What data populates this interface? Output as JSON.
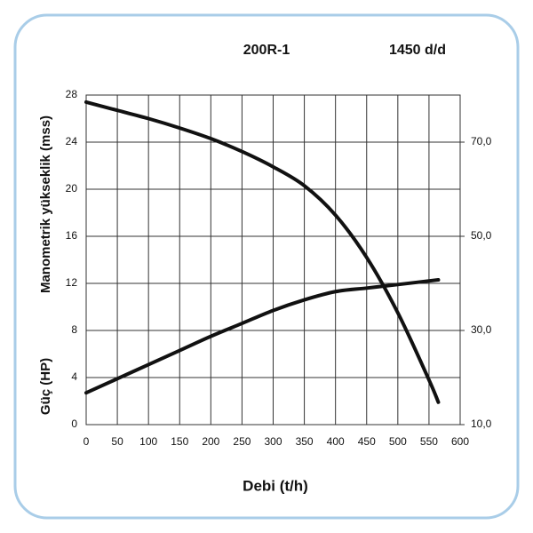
{
  "chart_data": {
    "type": "line",
    "title": "200R-1",
    "subtitle": "1450 d/d",
    "x_label": "Debi (t/h)",
    "y_label": "Manometrik yükseklik (mss)",
    "y_label_2": "Güç (HP)",
    "xlim": [
      0,
      600
    ],
    "xticks": [
      0,
      50,
      100,
      150,
      200,
      250,
      300,
      350,
      400,
      450,
      500,
      550,
      600
    ],
    "ylim": [
      0,
      28
    ],
    "yticks": [
      0,
      4,
      8,
      12,
      16,
      20,
      24,
      28
    ],
    "y2lim": [
      10,
      80
    ],
    "y2ticks": [
      {
        "value": 10,
        "label": "10,0"
      },
      {
        "value": 30,
        "label": "30,0"
      },
      {
        "value": 50,
        "label": "50,0"
      },
      {
        "value": 70,
        "label": "70,0"
      }
    ],
    "grid": true,
    "series": [
      {
        "color": "#111111",
        "x": [
          0,
          50,
          100,
          150,
          200,
          250,
          300,
          350,
          400,
          450,
          500,
          550,
          565
        ],
        "values": [
          27.4,
          26.7,
          26.0,
          25.2,
          24.3,
          23.2,
          21.9,
          20.3,
          17.8,
          14.2,
          9.5,
          3.8,
          1.9
        ]
      },
      {
        "color": "#111111",
        "x": [
          0,
          50,
          100,
          150,
          200,
          250,
          300,
          350,
          400,
          450,
          500,
          565
        ],
        "values": [
          2.7,
          3.9,
          5.1,
          6.3,
          7.5,
          8.6,
          9.7,
          10.6,
          11.3,
          11.6,
          11.9,
          12.3
        ]
      }
    ]
  }
}
